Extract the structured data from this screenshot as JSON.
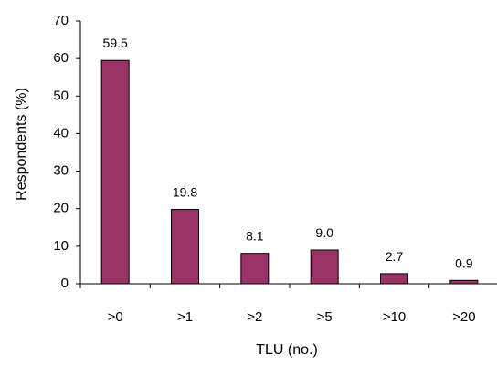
{
  "chart_data": {
    "type": "bar",
    "categories": [
      ">0",
      ">1",
      ">2",
      ">5",
      ">10",
      ">20"
    ],
    "values": [
      59.5,
      19.8,
      8.1,
      9.0,
      2.7,
      0.9
    ],
    "data_labels": [
      "59.5",
      "19.8",
      "8.1",
      "9.0",
      "2.7",
      "0.9"
    ],
    "xlabel": "TLU (no.)",
    "ylabel": "Respondents (%)",
    "ylim": [
      0,
      70
    ],
    "yticks": [
      0,
      10,
      20,
      30,
      40,
      50,
      60,
      70
    ],
    "grid": false,
    "legend": "none",
    "bar_color": "#993366",
    "bar_edge_color": "#000000"
  }
}
